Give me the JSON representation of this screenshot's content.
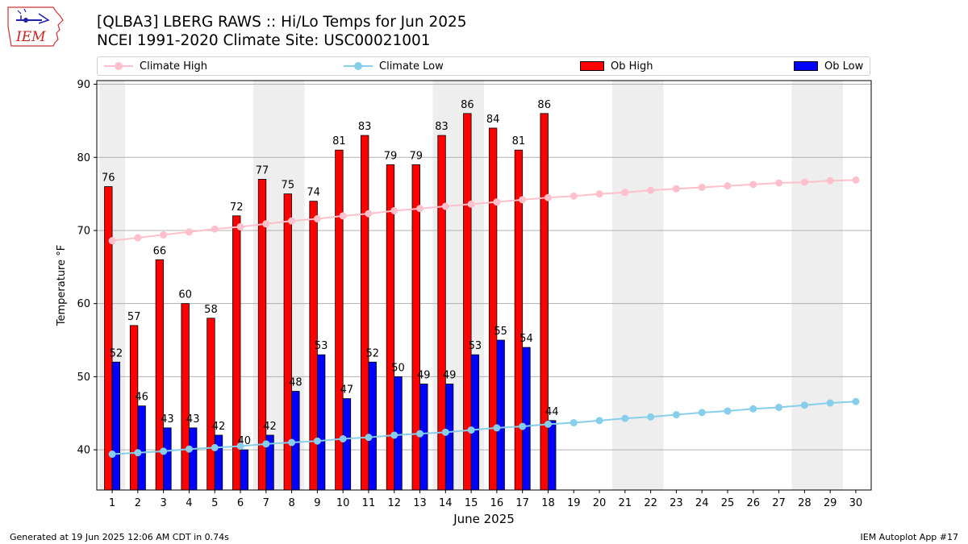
{
  "header": {
    "title_line1": "[QLBA3] LBERG RAWS :: Hi/Lo Temps for Jun 2025",
    "title_line2": "NCEI 1991-2020 Climate Site: USC00021001"
  },
  "logo": {
    "text": "IEM",
    "color": "#cc2222"
  },
  "legend": {
    "climate_high": "Climate High",
    "climate_low": "Climate Low",
    "ob_high": "Ob High",
    "ob_low": "Ob Low"
  },
  "colors": {
    "climate_high": "#ffc0cb",
    "climate_low": "#87ceeb",
    "ob_high": "#ff0000",
    "ob_low": "#0000ff",
    "weekend_shade": "#eeeeee",
    "grid": "#b0b0b0"
  },
  "chart_data": {
    "type": "bar",
    "xlabel": "June 2025",
    "ylabel": "Temperature °F",
    "ylim": [
      34.5,
      90.5
    ],
    "xlim": [
      0.4,
      30.6
    ],
    "yticks": [
      40,
      50,
      60,
      70,
      80,
      90
    ],
    "grid": "horizontal",
    "days": [
      1,
      2,
      3,
      4,
      5,
      6,
      7,
      8,
      9,
      10,
      11,
      12,
      13,
      14,
      15,
      16,
      17,
      18,
      19,
      20,
      21,
      22,
      23,
      24,
      25,
      26,
      27,
      28,
      29,
      30
    ],
    "shaded_days": [
      [
        1,
        1
      ],
      [
        7,
        8
      ],
      [
        14,
        15
      ],
      [
        21,
        22
      ],
      [
        28,
        29
      ]
    ],
    "series": [
      {
        "name": "Ob High",
        "type": "bar",
        "values": [
          76,
          57,
          66,
          60,
          58,
          72,
          77,
          75,
          74,
          81,
          83,
          79,
          79,
          83,
          86,
          84,
          81,
          86
        ]
      },
      {
        "name": "Ob Low",
        "type": "bar",
        "values": [
          52,
          46,
          43,
          43,
          42,
          40,
          42,
          48,
          53,
          47,
          52,
          50,
          49,
          49,
          53,
          55,
          54,
          44
        ]
      },
      {
        "name": "Climate High",
        "type": "line",
        "values": [
          68.6,
          69.0,
          69.4,
          69.8,
          70.2,
          70.5,
          70.9,
          71.3,
          71.6,
          72.0,
          72.3,
          72.7,
          73.0,
          73.3,
          73.6,
          73.9,
          74.2,
          74.5,
          74.7,
          75.0,
          75.2,
          75.5,
          75.7,
          75.9,
          76.1,
          76.3,
          76.5,
          76.6,
          76.8,
          76.9
        ]
      },
      {
        "name": "Climate Low",
        "type": "line",
        "values": [
          39.4,
          39.6,
          39.8,
          40.1,
          40.3,
          40.5,
          40.8,
          41.0,
          41.2,
          41.5,
          41.7,
          42.0,
          42.2,
          42.4,
          42.7,
          43.0,
          43.2,
          43.5,
          43.7,
          44.0,
          44.3,
          44.5,
          44.8,
          45.1,
          45.3,
          45.6,
          45.8,
          46.1,
          46.4,
          46.6
        ]
      }
    ]
  },
  "footer": {
    "generated": "Generated at 19 Jun 2025 12:06 AM CDT in 0.74s",
    "app": "IEM Autoplot App #17"
  }
}
